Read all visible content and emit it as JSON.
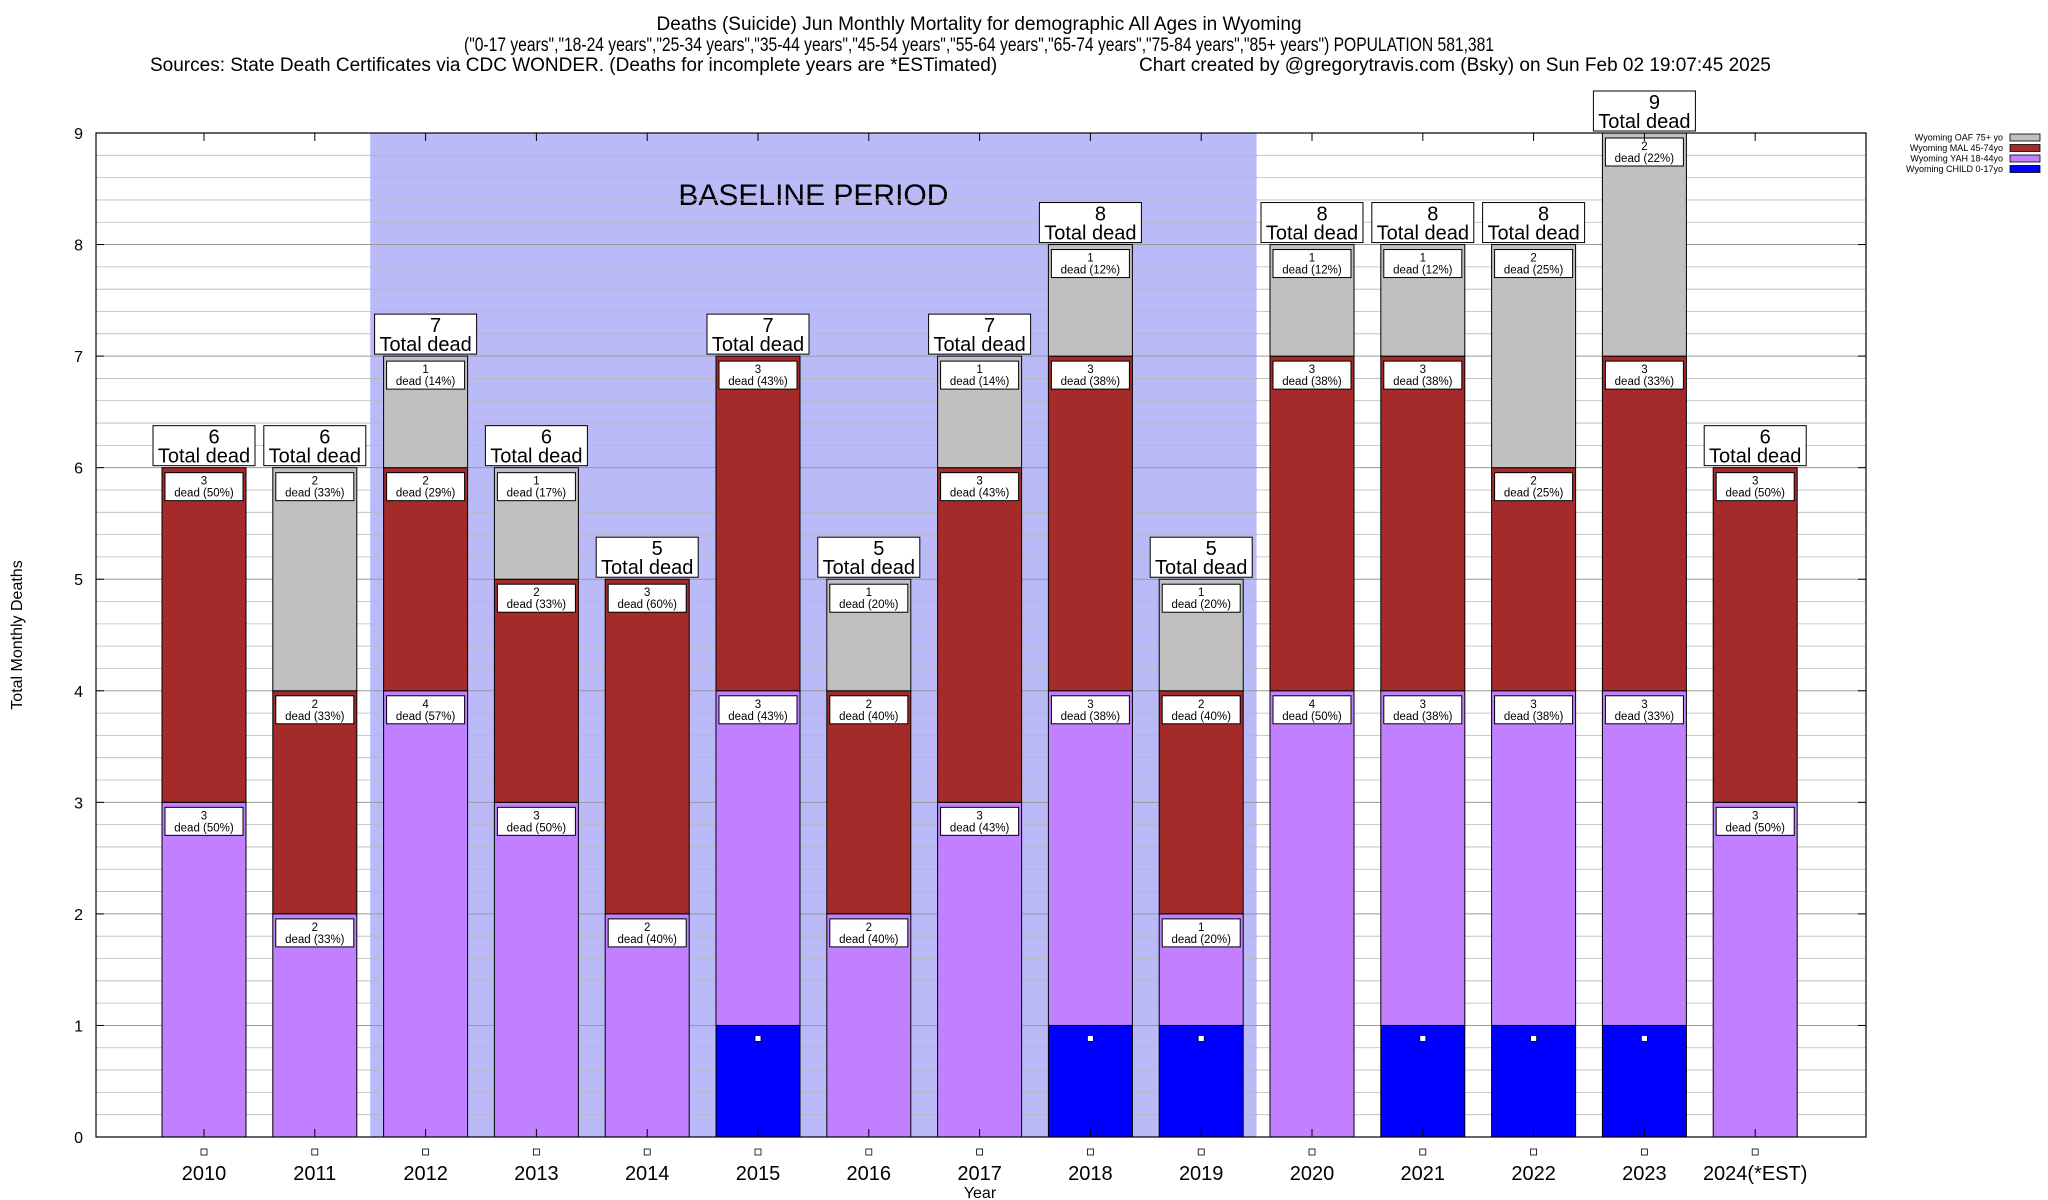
{
  "chart_data": {
    "type": "bar",
    "stacked": true,
    "title_lines": [
      "Deaths (Suicide) Jun Monthly Mortality for demographic All Ages in Wyoming",
      "(\"0-17 years\",\"18-24 years\",\"25-34 years\",\"35-44 years\",\"45-54 years\",\"55-64 years\",\"65-74 years\",\"75-84 years\",\"85+ years\") POPULATION 581,381"
    ],
    "sources_left": "Sources: State Death Certificates via CDC WONDER. (Deaths for incomplete years are *ESTimated)",
    "sources_right": "Chart created by @gregorytravis.com (Bsky) on Sun Feb 02 19:07:45 2025",
    "xlabel": "Year",
    "ylabel": "Total Monthly Deaths",
    "ylim": [
      0,
      9
    ],
    "yticks": [
      0,
      1,
      2,
      3,
      4,
      5,
      6,
      7,
      8,
      9
    ],
    "grid": true,
    "legend_position": "top-right",
    "baseline": {
      "label": "BASELINE PERIOD",
      "from": "2012",
      "to": "2019",
      "color": "#babaf8"
    },
    "total_label": "Total dead",
    "categories": [
      "2010",
      "2011",
      "2012",
      "2013",
      "2014",
      "2015",
      "2016",
      "2017",
      "2018",
      "2019",
      "2020",
      "2021",
      "2022",
      "2023",
      "2024(*EST)"
    ],
    "series": [
      {
        "name": "Wyoming CHILD 0-17yo",
        "color": "#0000ff",
        "values": [
          0,
          0,
          0,
          0,
          0,
          1,
          0,
          0,
          1,
          1,
          0,
          1,
          1,
          1,
          0
        ],
        "labels": [
          "",
          "",
          "",
          "",
          "",
          "",
          "",
          "",
          "",
          "",
          "",
          "",
          "",
          "",
          ""
        ]
      },
      {
        "name": "Wyoming YAH 18-44yo",
        "color": "#c080ff",
        "values": [
          3,
          2,
          4,
          3,
          2,
          3,
          2,
          3,
          3,
          1,
          4,
          3,
          3,
          3,
          3
        ],
        "labels": [
          "dead (50%)",
          "dead (33%)",
          "dead (57%)",
          "dead (50%)",
          "dead (40%)",
          "dead (43%)",
          "dead (40%)",
          "dead (43%)",
          "dead (38%)",
          "dead (20%)",
          "dead (50%)",
          "dead (38%)",
          "dead (38%)",
          "dead (33%)",
          "dead (50%)"
        ]
      },
      {
        "name": "Wyoming MAL 45-74yo",
        "color": "#a52a2a",
        "values": [
          3,
          2,
          2,
          2,
          3,
          3,
          2,
          3,
          3,
          2,
          3,
          3,
          2,
          3,
          3
        ],
        "labels": [
          "dead (50%)",
          "dead (33%)",
          "dead (29%)",
          "dead (33%)",
          "dead (60%)",
          "dead (43%)",
          "dead (40%)",
          "dead (43%)",
          "dead (38%)",
          "dead (40%)",
          "dead (38%)",
          "dead (38%)",
          "dead (25%)",
          "dead (33%)",
          "dead (50%)"
        ]
      },
      {
        "name": "Wyoming OAF 75+ yo",
        "color": "#c0c0c0",
        "values": [
          0,
          2,
          1,
          1,
          0,
          0,
          1,
          1,
          1,
          1,
          1,
          1,
          2,
          2,
          0
        ],
        "labels": [
          "",
          "dead (33%)",
          "dead (14%)",
          "dead (17%)",
          "",
          "",
          "dead (20%)",
          "dead (14%)",
          "dead (12%)",
          "dead (20%)",
          "dead (12%)",
          "dead (12%)",
          "dead (25%)",
          "dead (22%)",
          ""
        ]
      }
    ],
    "totals": [
      6,
      6,
      7,
      6,
      5,
      7,
      5,
      7,
      8,
      5,
      8,
      8,
      8,
      9,
      6
    ],
    "legend_order": [
      "Wyoming OAF 75+ yo",
      "Wyoming MAL 45-74yo",
      "Wyoming YAH 18-44yo",
      "Wyoming CHILD 0-17yo"
    ]
  }
}
